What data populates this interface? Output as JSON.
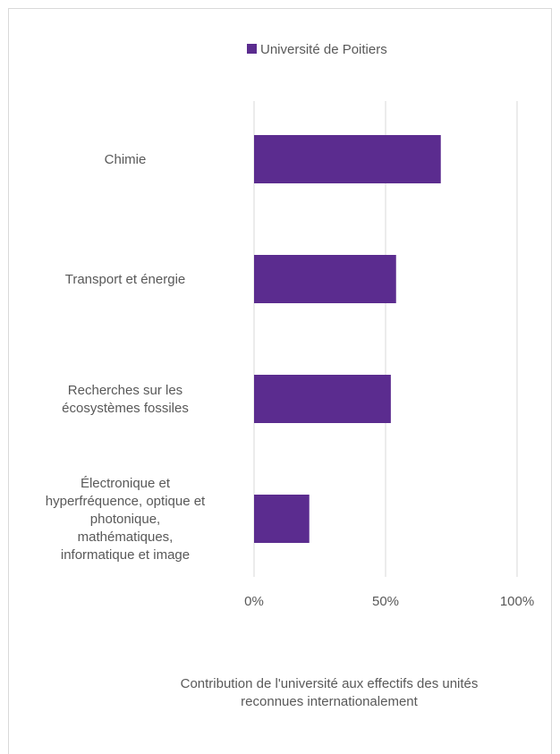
{
  "chart_data": {
    "type": "bar",
    "orientation": "horizontal",
    "categories": [
      "Chimie",
      "Transport et énergie",
      "Recherches sur les écosystèmes fossiles",
      "Électronique et hyperfréquence, optique et photonique, mathématiques, informatique et image"
    ],
    "category_lines": [
      [
        "Chimie"
      ],
      [
        "Transport et énergie"
      ],
      [
        "Recherches sur les",
        "écosystèmes fossiles"
      ],
      [
        "Électronique et",
        "hyperfréquence, optique et",
        "photonique,",
        "mathématiques,",
        "informatique et image"
      ]
    ],
    "series": [
      {
        "name": "Université de Poitiers",
        "values": [
          0.71,
          0.54,
          0.52,
          0.21
        ],
        "color": "#5b2c8f"
      }
    ],
    "xlim": [
      0,
      1
    ],
    "xticks": [
      0,
      0.5,
      1
    ],
    "xtick_labels": [
      "0%",
      "50%",
      "100%"
    ],
    "xlabel_lines": [
      "Contribution de l'université aux effectifs des unités",
      "reconnues internationalement"
    ],
    "ylabel": "",
    "grid": true,
    "gridline_color": "#d9d9d9",
    "legend_position": "top"
  }
}
